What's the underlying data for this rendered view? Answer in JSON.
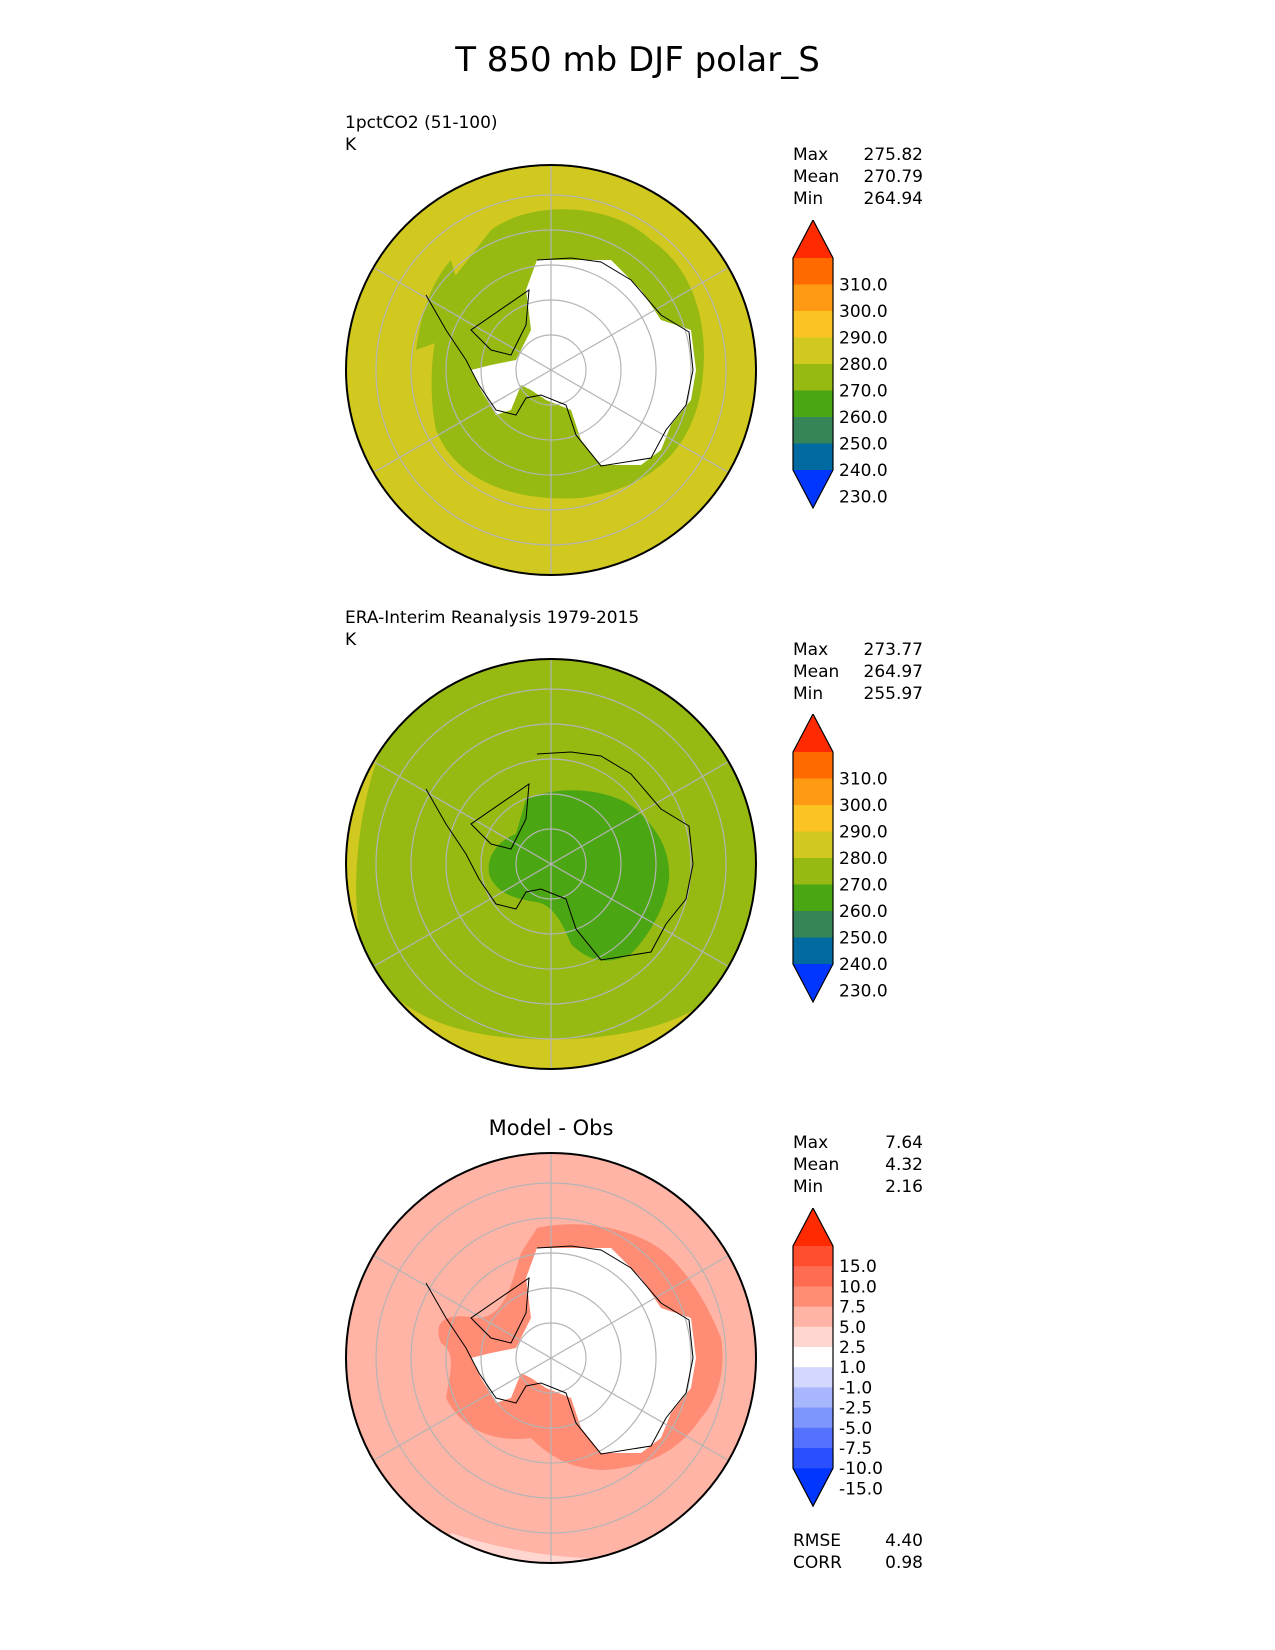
{
  "title": "T 850 mb DJF polar_S",
  "panels": [
    {
      "label": "1pctCO2 (51-100)",
      "units": "K",
      "stats": [
        {
          "label": "Max",
          "value": "275.82"
        },
        {
          "label": "Mean",
          "value": "270.79"
        },
        {
          "label": "Min",
          "value": "264.94"
        }
      ],
      "colorbar": {
        "ticks": [
          "310.0",
          "300.0",
          "290.0",
          "280.0",
          "270.0",
          "260.0",
          "250.0",
          "240.0",
          "230.0"
        ],
        "colors": [
          "#ff2a00",
          "#ff6a00",
          "#ff9a14",
          "#fcc422",
          "#d2c920",
          "#96ba12",
          "#4aa612",
          "#368558",
          "#006aa1",
          "#0036fe"
        ]
      }
    },
    {
      "label": "ERA-Interim Reanalysis 1979-2015",
      "units": "K",
      "stats": [
        {
          "label": "Max",
          "value": "273.77"
        },
        {
          "label": "Mean",
          "value": "264.97"
        },
        {
          "label": "Min",
          "value": "255.97"
        }
      ],
      "colorbar": {
        "ticks": [
          "310.0",
          "300.0",
          "290.0",
          "280.0",
          "270.0",
          "260.0",
          "250.0",
          "240.0",
          "230.0"
        ],
        "colors": [
          "#ff2a00",
          "#ff6a00",
          "#ff9a14",
          "#fcc422",
          "#d2c920",
          "#96ba12",
          "#4aa612",
          "#368558",
          "#006aa1",
          "#0036fe"
        ]
      }
    },
    {
      "center_title": "Model - Obs",
      "stats": [
        {
          "label": "Max",
          "value": "7.64"
        },
        {
          "label": "Mean",
          "value": "4.32"
        },
        {
          "label": "Min",
          "value": "2.16"
        }
      ],
      "colorbar": {
        "ticks": [
          "15.0",
          "10.0",
          "7.5",
          "5.0",
          "2.5",
          "1.0",
          "-1.0",
          "-2.5",
          "-5.0",
          "-7.5",
          "-10.0",
          "-15.0"
        ],
        "colors": [
          "#ff2a00",
          "#ff4e2e",
          "#ff6c52",
          "#ff8c74",
          "#ffb4a6",
          "#ffd6d0",
          "#ffffff",
          "#d2d8fe",
          "#a8b6fe",
          "#7e94fe",
          "#5472fe",
          "#2a50fe",
          "#0036fe"
        ]
      },
      "metrics": [
        {
          "label": "RMSE",
          "value": "4.40"
        },
        {
          "label": "CORR",
          "value": "0.98"
        }
      ]
    }
  ],
  "chart_data": [
    {
      "type": "heatmap",
      "title": "1pctCO2 (51-100)",
      "units": "K",
      "projection": "south polar stereographic",
      "levels": [
        230,
        240,
        250,
        260,
        270,
        280,
        290,
        300,
        310
      ],
      "stats": {
        "max": 275.82,
        "mean": 270.79,
        "min": 264.94
      }
    },
    {
      "type": "heatmap",
      "title": "ERA-Interim Reanalysis 1979-2015",
      "units": "K",
      "projection": "south polar stereographic",
      "levels": [
        230,
        240,
        250,
        260,
        270,
        280,
        290,
        300,
        310
      ],
      "stats": {
        "max": 273.77,
        "mean": 264.97,
        "min": 255.97
      }
    },
    {
      "type": "heatmap",
      "title": "Model - Obs",
      "projection": "south polar stereographic",
      "levels": [
        -15,
        -10,
        -7.5,
        -5,
        -2.5,
        -1,
        1,
        2.5,
        5,
        7.5,
        10,
        15
      ],
      "stats": {
        "max": 7.64,
        "mean": 4.32,
        "min": 2.16
      },
      "rmse": 4.4,
      "corr": 0.98
    }
  ]
}
